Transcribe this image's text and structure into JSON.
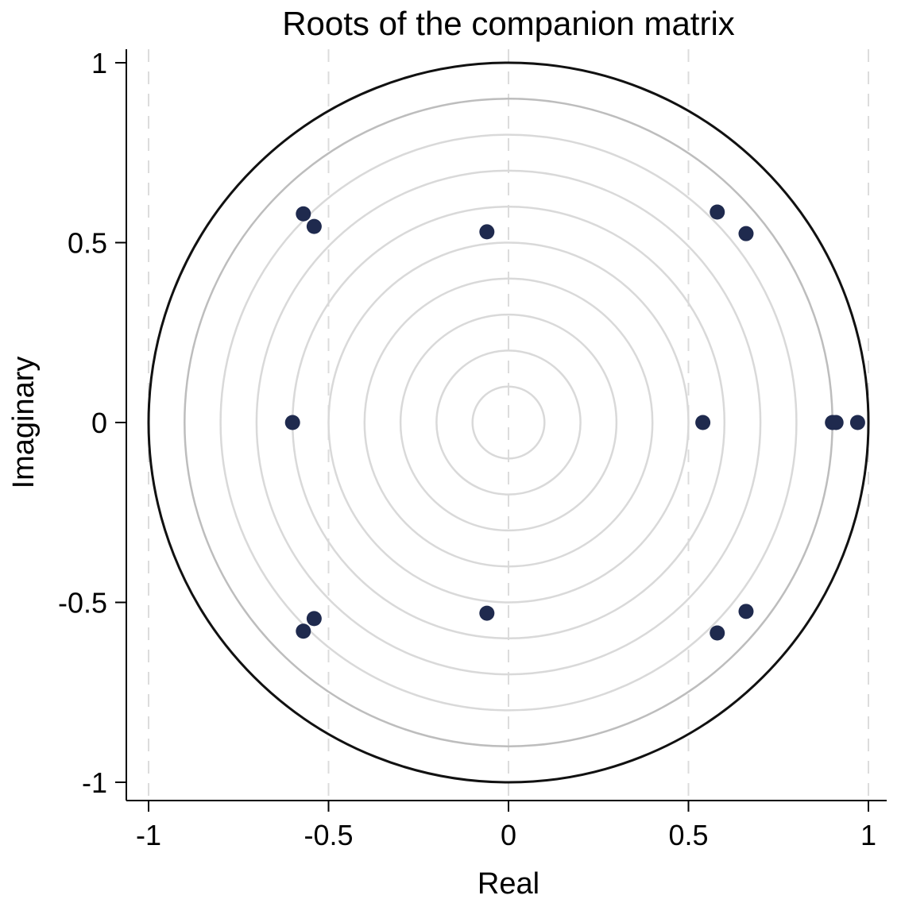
{
  "chart_data": {
    "type": "scatter",
    "title": "Roots of the companion matrix",
    "xlabel": "Real",
    "ylabel": "Imaginary",
    "xlim": [
      -1.05,
      1.0
    ],
    "ylim": [
      -1.06,
      1.06
    ],
    "xticks": [
      -1,
      -0.5,
      0,
      0.5,
      1
    ],
    "xtick_labels": [
      "-1",
      "-0.5",
      "0",
      "0.5",
      "1"
    ],
    "yticks": [
      -1,
      -0.5,
      0,
      0.5,
      1
    ],
    "ytick_labels": [
      "-1",
      "-0.5",
      "0",
      "0.5",
      "1"
    ],
    "grid": "dashed vertical lines at x ticks",
    "reference_circles": {
      "unit_circle_radius": 1.0,
      "inner_radii": [
        0.9,
        0.8,
        0.7,
        0.6,
        0.5,
        0.4,
        0.3,
        0.2,
        0.1
      ]
    },
    "marker_color": "#1f2a4e",
    "unit_circle_color": "#111111",
    "inner_circle_colors": [
      "#bdbdbd",
      "#d9d9d9"
    ],
    "grid_color": "#dcdcdc",
    "series": [
      {
        "points": [
          {
            "x": -0.57,
            "y": 0.58
          },
          {
            "x": -0.54,
            "y": 0.545
          },
          {
            "x": -0.06,
            "y": 0.53
          },
          {
            "x": 0.58,
            "y": 0.585
          },
          {
            "x": 0.66,
            "y": 0.525
          },
          {
            "x": -0.6,
            "y": 0.0
          },
          {
            "x": 0.54,
            "y": 0.0
          },
          {
            "x": 0.9,
            "y": 0.0
          },
          {
            "x": 0.91,
            "y": 0.0
          },
          {
            "x": 0.97,
            "y": 0.0
          },
          {
            "x": -0.57,
            "y": -0.58
          },
          {
            "x": -0.54,
            "y": -0.545
          },
          {
            "x": -0.06,
            "y": -0.53
          },
          {
            "x": 0.58,
            "y": -0.585
          },
          {
            "x": 0.66,
            "y": -0.525
          }
        ]
      }
    ]
  }
}
